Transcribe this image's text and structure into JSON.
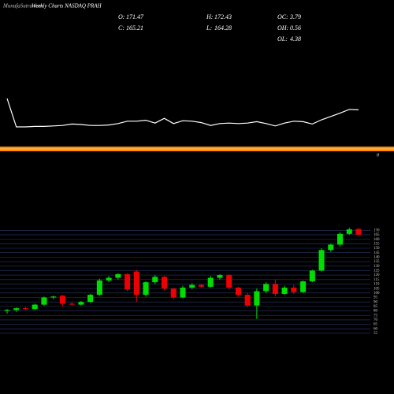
{
  "chart_data": [
    {
      "type": "line",
      "color": "#ffffff",
      "ylim": [
        0,
        100
      ],
      "values": [
        75,
        15,
        15,
        16,
        16,
        17,
        18,
        21,
        20,
        18,
        18,
        19,
        22,
        27,
        27,
        29,
        23,
        33,
        22,
        28,
        27,
        24,
        18,
        22,
        23,
        22,
        23,
        26,
        22,
        17,
        23,
        27,
        26,
        21,
        30,
        37,
        44,
        52,
        51
      ],
      "marker_label": "0"
    },
    {
      "type": "candlestick",
      "title": "Weekly Charts NASDAQ PRAH",
      "watermark": "MunafaSutra.com",
      "up_color": "#00dd00",
      "down_color": "#ee0000",
      "grid": true,
      "ylim": [
        40,
        194
      ],
      "yticks": [
        55,
        60,
        65,
        70,
        75,
        80,
        85,
        90,
        95,
        100,
        105,
        110,
        115,
        120,
        125,
        130,
        135,
        140,
        145,
        150,
        155,
        160,
        165,
        170
      ],
      "open": [
        80,
        81,
        83,
        82,
        87,
        95,
        97,
        88,
        87,
        90,
        98,
        114,
        117,
        121,
        124,
        98,
        112,
        118,
        105,
        95,
        106,
        109,
        107,
        117,
        120,
        106,
        98,
        86,
        102,
        110,
        99,
        106,
        101,
        113,
        125,
        148,
        154,
        166,
        171.47
      ],
      "high": [
        82,
        84,
        84,
        88,
        96,
        97,
        98,
        90,
        91,
        99,
        116,
        119,
        122,
        122,
        126,
        113,
        120,
        119,
        106,
        108,
        111,
        110,
        119,
        121,
        121,
        107,
        100,
        105,
        112,
        115,
        108,
        109,
        114,
        126,
        150,
        155,
        168,
        173,
        172.43
      ],
      "low": [
        77,
        79,
        81,
        81,
        86,
        93,
        85,
        86,
        86,
        89,
        97,
        112,
        115,
        102,
        90,
        96,
        110,
        103,
        93,
        94,
        104,
        106,
        106,
        115,
        104,
        96,
        84,
        71,
        100,
        96,
        98,
        99,
        100,
        112,
        124,
        146,
        152,
        165,
        164.28
      ],
      "close": [
        81,
        83,
        82,
        87,
        95,
        96,
        88,
        87,
        90,
        98,
        114,
        117,
        121,
        104,
        98,
        112,
        118,
        105,
        95,
        106,
        109,
        107,
        117,
        120,
        106,
        98,
        86,
        102,
        110,
        99,
        106,
        101,
        113,
        125,
        148,
        154,
        166,
        171,
        165.21
      ]
    }
  ],
  "ohlc": [
    {
      "label": "O:",
      "value": 171.47
    },
    {
      "label": "H:",
      "value": 172.43
    },
    {
      "label": "OC:",
      "value": 3.79
    },
    {
      "label": "C:",
      "value": 165.21
    },
    {
      "label": "L:",
      "value": 164.28
    },
    {
      "label": "OH:",
      "value": 0.56
    },
    {
      "label": "OL:",
      "value": 4.38
    }
  ]
}
